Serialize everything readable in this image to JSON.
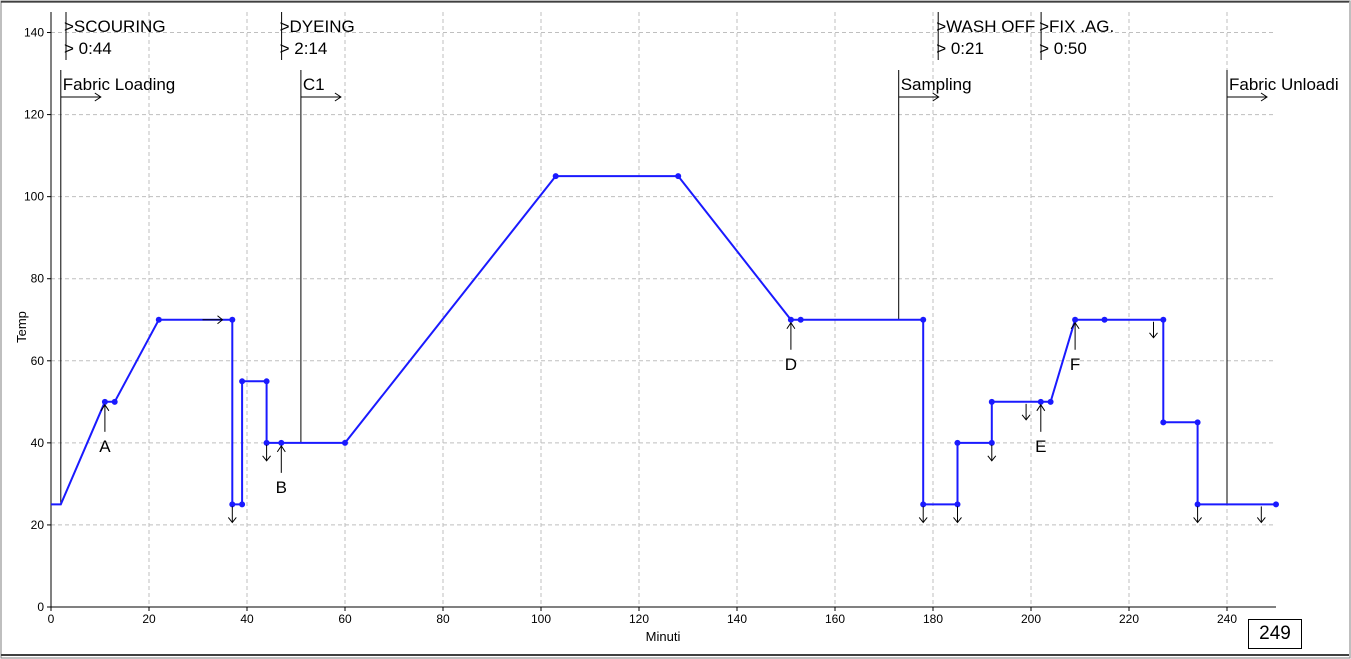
{
  "chart_data": {
    "type": "line",
    "xlabel": "Minuti",
    "ylabel": "Temp",
    "xlim": [
      0,
      250
    ],
    "ylim": [
      0,
      145
    ],
    "xticks": [
      0,
      20,
      40,
      60,
      80,
      100,
      120,
      140,
      160,
      180,
      200,
      220,
      240
    ],
    "yticks": [
      0,
      20,
      40,
      60,
      80,
      100,
      120,
      140
    ],
    "grid": true,
    "line_color": "#1a1aff",
    "series": [
      {
        "x": [
          0,
          2,
          11,
          13,
          22,
          37,
          37,
          39,
          39,
          41,
          44,
          44,
          47,
          60,
          103,
          128,
          151,
          153,
          178,
          178,
          185,
          185,
          192,
          192,
          199,
          202,
          204,
          209,
          215,
          227,
          227,
          234,
          234,
          250
        ],
        "y": [
          25,
          25,
          50,
          50,
          70,
          70,
          25,
          25,
          55,
          55,
          55,
          40,
          40,
          40,
          105,
          105,
          70,
          70,
          70,
          25,
          25,
          40,
          40,
          50,
          50,
          50,
          50,
          70,
          70,
          70,
          45,
          45,
          25,
          25
        ],
        "markers": [
          [
            11,
            50
          ],
          [
            13,
            50
          ],
          [
            22,
            70
          ],
          [
            37,
            70
          ],
          [
            37,
            25
          ],
          [
            39,
            25
          ],
          [
            39,
            55
          ],
          [
            44,
            55
          ],
          [
            44,
            40
          ],
          [
            47,
            40
          ],
          [
            60,
            40
          ],
          [
            103,
            105
          ],
          [
            128,
            105
          ],
          [
            151,
            70
          ],
          [
            153,
            70
          ],
          [
            178,
            70
          ],
          [
            178,
            25
          ],
          [
            185,
            25
          ],
          [
            185,
            40
          ],
          [
            192,
            40
          ],
          [
            192,
            50
          ],
          [
            202,
            50
          ],
          [
            204,
            50
          ],
          [
            209,
            70
          ],
          [
            215,
            70
          ],
          [
            227,
            70
          ],
          [
            227,
            45
          ],
          [
            234,
            45
          ],
          [
            234,
            25
          ],
          [
            250,
            25
          ]
        ]
      }
    ],
    "phases": [
      {
        "name": ">SCOURING",
        "duration": "> 0:44",
        "x": 0
      },
      {
        "name": ">DYEING",
        "duration": "> 2:14",
        "x": 44
      },
      {
        "name": ">WASH OFF",
        "duration": "> 0:21",
        "x": 178
      },
      {
        "name": ">FIX .AG.",
        "duration": "> 0:50",
        "x": 199
      }
    ],
    "events": [
      {
        "label": "Fabric Loading",
        "x": 2,
        "y_from": 25
      },
      {
        "label": "C1",
        "x": 51,
        "y_from": 40
      },
      {
        "label": "Sampling",
        "x": 173,
        "y_from": 70
      },
      {
        "label": "Fabric Unloadi",
        "x": 240,
        "y_from": 25
      }
    ],
    "letter_markers": [
      {
        "label": "A",
        "x": 11,
        "y": 50
      },
      {
        "label": "B",
        "x": 47,
        "y": 40
      },
      {
        "label": "D",
        "x": 151,
        "y": 70
      },
      {
        "label": "E",
        "x": 202,
        "y": 50
      },
      {
        "label": "F",
        "x": 209,
        "y": 70
      }
    ],
    "down_arrows": [
      [
        37,
        25
      ],
      [
        44,
        40
      ],
      [
        178,
        25
      ],
      [
        185,
        25
      ],
      [
        192,
        40
      ],
      [
        199,
        50
      ],
      [
        225,
        70
      ],
      [
        234,
        25
      ],
      [
        247,
        25
      ]
    ],
    "right_arrows": [
      [
        35,
        70
      ]
    ]
  },
  "counter": {
    "value": "249"
  }
}
